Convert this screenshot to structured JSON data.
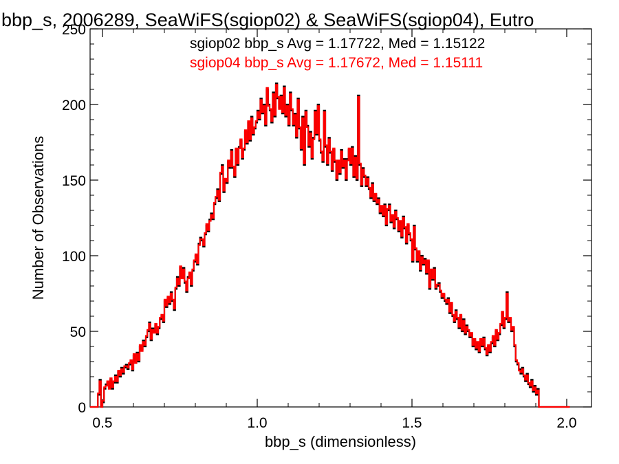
{
  "chart_data": {
    "type": "line",
    "title": "bbp_s, 2006289, SeaWiFS(sgiop02) & SeaWiFS(sgiop04), Eutro",
    "xlabel": "bbp_s (dimensionless)",
    "ylabel": "Number of Observations",
    "xlim": [
      0.46,
      2.08
    ],
    "ylim": [
      0,
      250
    ],
    "xticks": [
      0.5,
      1.0,
      1.5,
      2.0
    ],
    "xtick_labels": [
      "0.5",
      "1.0",
      "1.5",
      "2.0"
    ],
    "yticks": [
      0,
      50,
      100,
      150,
      200,
      250
    ],
    "ytick_labels": [
      "0",
      "50",
      "100",
      "150",
      "200",
      "250"
    ],
    "grid": false,
    "legend_placement": "top-right",
    "annotations": [
      {
        "text": "sgiop02 bbp_s Avg = 1.17722, Med = 1.15122",
        "color": "#000000"
      },
      {
        "text": "sgiop04 bbp_s Avg = 1.17672, Med = 1.15111",
        "color": "#ff0000"
      }
    ],
    "bin_width": 0.005,
    "x_start": 0.46,
    "series": [
      {
        "name": "sgiop02",
        "color": "#000000",
        "values": [
          0,
          0,
          0,
          0,
          0,
          8,
          18,
          0,
          3,
          12,
          15,
          16,
          13,
          18,
          12,
          16,
          21,
          16,
          23,
          20,
          26,
          22,
          26,
          28,
          25,
          28,
          30,
          24,
          34,
          30,
          36,
          30,
          40,
          38,
          44,
          40,
          46,
          50,
          56,
          44,
          52,
          50,
          54,
          48,
          52,
          58,
          60,
          56,
          70,
          66,
          72,
          68,
          76,
          70,
          64,
          78,
          86,
          80,
          92,
          86,
          92,
          82,
          76,
          86,
          88,
          80,
          90,
          96,
          100,
          94,
          108,
          112,
          110,
          106,
          114,
          120,
          116,
          124,
          128,
          124,
          134,
          138,
          144,
          136,
          154,
          160,
          142,
          150,
          148,
          162,
          158,
          170,
          158,
          152,
          170,
          160,
          172,
          176,
          164,
          170,
          182,
          174,
          188,
          176,
          192,
          180,
          184,
          188,
          196,
          190,
          204,
          194,
          200,
          186,
          210,
          200,
          196,
          188,
          208,
          192,
          214,
          204,
          198,
          206,
          194,
          212,
          192,
          200,
          186,
          208,
          196,
          186,
          194,
          178,
          204,
          184,
          170,
          192,
          160,
          196,
          186,
          172,
          182,
          164,
          178,
          196,
          180,
          200,
          176,
          168,
          162,
          196,
          172,
          160,
          178,
          168,
          156,
          170,
          162,
          150,
          162,
          154,
          170,
          158,
          164,
          150,
          164,
          170,
          160,
          172,
          152,
          166,
          150,
          206,
          160,
          146,
          158,
          152,
          146,
          152,
          144,
          138,
          148,
          136,
          140,
          134,
          138,
          128,
          132,
          126,
          134,
          120,
          130,
          134,
          122,
          126,
          118,
          130,
          124,
          116,
          122,
          112,
          126,
          118,
          108,
          120,
          114,
          110,
          96,
          120,
          104,
          96,
          102,
          90,
          100,
          94,
          98,
          88,
          96,
          78,
          90,
          84,
          92,
          78,
          80,
          82,
          76,
          72,
          74,
          70,
          68,
          72,
          62,
          68,
          60,
          56,
          64,
          58,
          52,
          60,
          50,
          58,
          48,
          54,
          50,
          46,
          48,
          40,
          44,
          38,
          42,
          36,
          44,
          40,
          46,
          38,
          34,
          40,
          36,
          42,
          46,
          40,
          50,
          44,
          48,
          54,
          62,
          52,
          58,
          76,
          56,
          58,
          50,
          52,
          40,
          30,
          28,
          25,
          22,
          26,
          20,
          17,
          22,
          15,
          13,
          18,
          10,
          14,
          8,
          12,
          0,
          0,
          0,
          0,
          0,
          0,
          0,
          0,
          0,
          0,
          0,
          0,
          0,
          0,
          0,
          0,
          0,
          0,
          0,
          0
        ]
      },
      {
        "name": "sgiop04",
        "color": "#ff0000",
        "values": [
          0,
          0,
          0,
          0,
          0,
          9,
          17,
          0,
          4,
          13,
          14,
          17,
          12,
          19,
          13,
          17,
          20,
          17,
          24,
          21,
          25,
          23,
          27,
          27,
          26,
          29,
          31,
          25,
          35,
          29,
          35,
          31,
          41,
          37,
          43,
          41,
          47,
          51,
          55,
          45,
          51,
          49,
          55,
          49,
          53,
          59,
          61,
          57,
          71,
          67,
          73,
          69,
          75,
          71,
          65,
          79,
          85,
          81,
          93,
          85,
          91,
          83,
          77,
          85,
          89,
          81,
          91,
          97,
          101,
          95,
          107,
          111,
          111,
          107,
          115,
          121,
          117,
          123,
          127,
          125,
          135,
          139,
          143,
          137,
          155,
          159,
          143,
          151,
          149,
          163,
          159,
          169,
          159,
          153,
          171,
          161,
          171,
          177,
          165,
          171,
          183,
          175,
          189,
          177,
          191,
          181,
          185,
          189,
          195,
          191,
          203,
          195,
          199,
          187,
          211,
          199,
          197,
          189,
          207,
          193,
          213,
          205,
          197,
          205,
          195,
          211,
          193,
          199,
          187,
          207,
          197,
          187,
          193,
          179,
          203,
          185,
          171,
          191,
          161,
          195,
          185,
          173,
          181,
          165,
          177,
          195,
          181,
          199,
          177,
          169,
          163,
          195,
          173,
          161,
          177,
          169,
          157,
          171,
          163,
          151,
          163,
          155,
          169,
          159,
          163,
          151,
          163,
          171,
          161,
          171,
          153,
          165,
          151,
          205,
          161,
          147,
          157,
          153,
          147,
          151,
          145,
          139,
          147,
          137,
          141,
          135,
          137,
          129,
          133,
          127,
          133,
          121,
          131,
          133,
          123,
          127,
          119,
          129,
          125,
          117,
          123,
          113,
          125,
          119,
          109,
          121,
          115,
          111,
          97,
          119,
          105,
          97,
          103,
          91,
          99,
          95,
          97,
          89,
          97,
          79,
          91,
          85,
          91,
          79,
          81,
          81,
          77,
          73,
          75,
          71,
          69,
          71,
          63,
          69,
          61,
          57,
          63,
          59,
          53,
          61,
          51,
          57,
          49,
          53,
          51,
          47,
          49,
          41,
          45,
          39,
          43,
          37,
          45,
          41,
          45,
          39,
          35,
          41,
          37,
          43,
          47,
          41,
          51,
          45,
          49,
          55,
          63,
          53,
          59,
          75,
          57,
          59,
          51,
          53,
          41,
          31,
          29,
          24,
          23,
          25,
          21,
          18,
          21,
          16,
          14,
          17,
          11,
          13,
          9,
          11,
          0,
          0,
          0,
          0,
          0,
          0,
          0,
          0,
          0,
          0,
          0,
          0,
          0,
          0,
          0,
          0,
          0,
          0,
          0,
          0
        ]
      }
    ]
  }
}
